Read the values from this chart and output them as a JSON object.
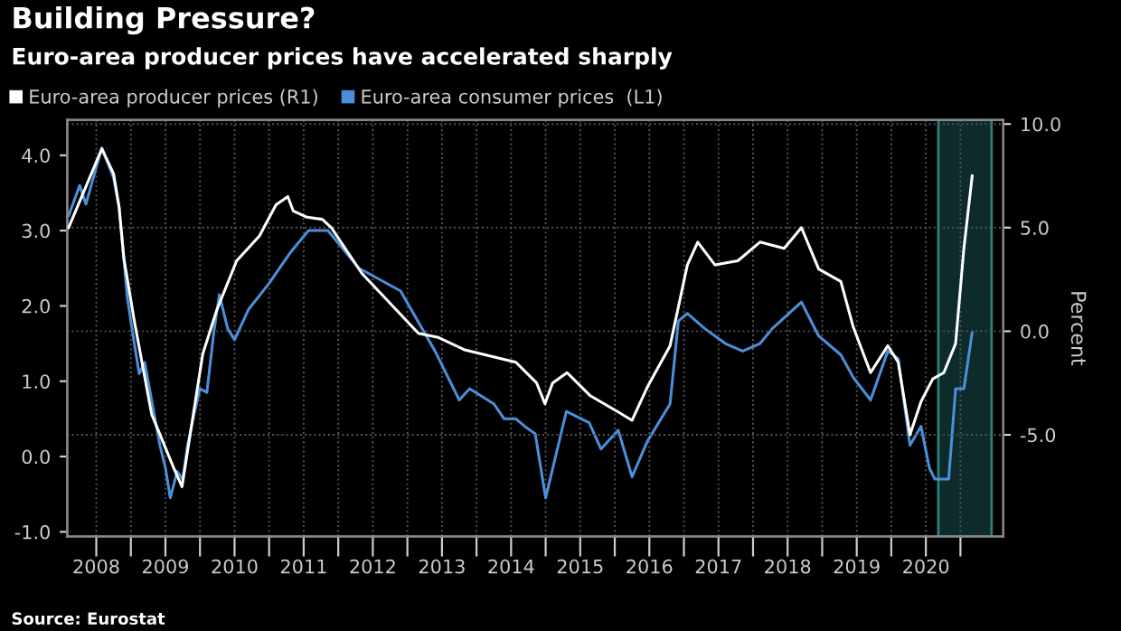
{
  "chart_data": {
    "type": "line",
    "title": "Building Pressure?",
    "subtitle": "Euro-area producer prices have accelerated sharply",
    "y2label": "Percent",
    "annotations": [
      "Source: Eurostat"
    ],
    "legend": "top left",
    "grid": true,
    "marker": "none",
    "line_style": "solid",
    "xlim": [
      2008.08,
      2021.62
    ],
    "xticks": [
      {
        "value": 2008.5,
        "label": "2008"
      },
      {
        "value": 2009,
        "label": null
      },
      {
        "value": 2009.5,
        "label": "2009"
      },
      {
        "value": 2010,
        "label": null
      },
      {
        "value": 2010.5,
        "label": "2010"
      },
      {
        "value": 2011,
        "label": null
      },
      {
        "value": 2011.5,
        "label": "2011"
      },
      {
        "value": 2012,
        "label": null
      },
      {
        "value": 2012.5,
        "label": "2012"
      },
      {
        "value": 2013,
        "label": null
      },
      {
        "value": 2013.5,
        "label": "2013"
      },
      {
        "value": 2014,
        "label": null
      },
      {
        "value": 2014.5,
        "label": "2014"
      },
      {
        "value": 2015,
        "label": null
      },
      {
        "value": 2015.5,
        "label": "2015"
      },
      {
        "value": 2016,
        "label": null
      },
      {
        "value": 2016.5,
        "label": "2016"
      },
      {
        "value": 2017,
        "label": null
      },
      {
        "value": 2017.5,
        "label": "2017"
      },
      {
        "value": 2018,
        "label": null
      },
      {
        "value": 2018.5,
        "label": "2018"
      },
      {
        "value": 2019,
        "label": null
      },
      {
        "value": 2019.5,
        "label": "2019"
      },
      {
        "value": 2020,
        "label": null
      },
      {
        "value": 2020.5,
        "label": "2020"
      },
      {
        "value": 2021,
        "label": null
      }
    ],
    "ylim": [
      -1.06,
      4.47
    ],
    "yticks": [
      {
        "value": -1,
        "label": "-1.0"
      },
      {
        "value": 0,
        "label": "0.0"
      },
      {
        "value": 1,
        "label": "1.0"
      },
      {
        "value": 2,
        "label": "2.0"
      },
      {
        "value": 3,
        "label": "3.0"
      },
      {
        "value": 4,
        "label": "4.0"
      }
    ],
    "y2lim": [
      -9.9,
      10.2
    ],
    "y2ticks": [
      {
        "value": -5,
        "label": "-5.0"
      },
      {
        "value": 0,
        "label": "0.0"
      },
      {
        "value": 5,
        "label": "5.0"
      },
      {
        "value": 10,
        "label": "10.0"
      }
    ],
    "bands": [
      {
        "axis": "x",
        "from": 2020.68,
        "to": 2021.45,
        "color": "#0d2b2b"
      }
    ],
    "series": [
      {
        "name": "Euro-area producer prices (R1)",
        "color": "#ffffff",
        "axis": "y2",
        "x": [
          2008.1,
          2008.58,
          2008.75,
          2008.83,
          2008.9,
          2009.05,
          2009.3,
          2009.62,
          2009.74,
          2010.04,
          2010.24,
          2010.53,
          2010.86,
          2011.1,
          2011.27,
          2011.35,
          2011.55,
          2011.77,
          2011.9,
          2012.34,
          2013.16,
          2013.45,
          2013.83,
          2014.57,
          2014.87,
          2014.99,
          2015.1,
          2015.31,
          2015.64,
          2016.05,
          2016.25,
          2016.47,
          2016.8,
          2017.05,
          2017.2,
          2017.45,
          2017.78,
          2018.1,
          2018.45,
          2018.7,
          2018.95,
          2019.27,
          2019.45,
          2019.7,
          2019.95,
          2020.1,
          2020.27,
          2020.43,
          2020.6,
          2020.76,
          2020.93,
          2021.05,
          2021.17
        ],
        "values": [
          5.0,
          8.8,
          7.6,
          6.0,
          3.5,
          0.5,
          -4.0,
          -6.6,
          -7.5,
          -1.1,
          1.0,
          3.4,
          4.6,
          6.1,
          6.5,
          5.8,
          5.5,
          5.4,
          5.0,
          2.8,
          -0.1,
          -0.3,
          -0.9,
          -1.5,
          -2.5,
          -3.5,
          -2.5,
          -2.0,
          -3.1,
          -3.9,
          -4.3,
          -2.7,
          -0.7,
          3.2,
          4.3,
          3.2,
          3.4,
          4.3,
          4.0,
          5.0,
          3.0,
          2.4,
          0.2,
          -2.0,
          -0.7,
          -1.5,
          -5.0,
          -3.4,
          -2.3,
          -2.0,
          -0.6,
          4.0,
          7.5
        ]
      },
      {
        "name": "Euro-area consumer prices  (L1)",
        "color": "#4a8fd8",
        "axis": "y",
        "x": [
          2008.1,
          2008.26,
          2008.35,
          2008.58,
          2008.75,
          2008.83,
          2008.88,
          2008.95,
          2009.05,
          2009.12,
          2009.2,
          2009.33,
          2009.42,
          2009.5,
          2009.57,
          2009.67,
          2009.75,
          2009.82,
          2009.9,
          2010.0,
          2010.1,
          2010.2,
          2010.28,
          2010.4,
          2010.5,
          2010.7,
          2011.0,
          2011.3,
          2011.57,
          2011.85,
          2012.3,
          2012.9,
          2013.4,
          2013.75,
          2013.9,
          2014.25,
          2014.4,
          2014.57,
          2014.7,
          2014.85,
          2015.0,
          2015.3,
          2015.63,
          2015.8,
          2016.05,
          2016.25,
          2016.47,
          2016.8,
          2016.92,
          2017.05,
          2017.3,
          2017.6,
          2017.85,
          2018.1,
          2018.28,
          2018.7,
          2018.95,
          2019.27,
          2019.45,
          2019.7,
          2019.95,
          2020.1,
          2020.27,
          2020.43,
          2020.55,
          2020.63,
          2020.83,
          2020.93,
          2021.05,
          2021.17
        ],
        "values": [
          3.2,
          3.6,
          3.35,
          4.1,
          3.7,
          3.3,
          2.8,
          2.1,
          1.5,
          1.1,
          1.25,
          0.6,
          0.15,
          -0.15,
          -0.55,
          -0.2,
          -0.3,
          0.15,
          0.5,
          0.9,
          0.85,
          1.65,
          2.15,
          1.7,
          1.55,
          1.95,
          2.3,
          2.7,
          3.0,
          3.0,
          2.5,
          2.2,
          1.4,
          0.75,
          0.9,
          0.7,
          0.5,
          0.5,
          0.4,
          0.3,
          -0.55,
          0.6,
          0.45,
          0.1,
          0.35,
          -0.27,
          0.2,
          0.7,
          1.8,
          1.9,
          1.7,
          1.5,
          1.4,
          1.5,
          1.7,
          2.05,
          1.6,
          1.35,
          1.05,
          0.75,
          1.4,
          1.3,
          0.15,
          0.4,
          -0.15,
          -0.3,
          -0.3,
          0.9,
          0.9,
          1.65
        ]
      }
    ]
  }
}
